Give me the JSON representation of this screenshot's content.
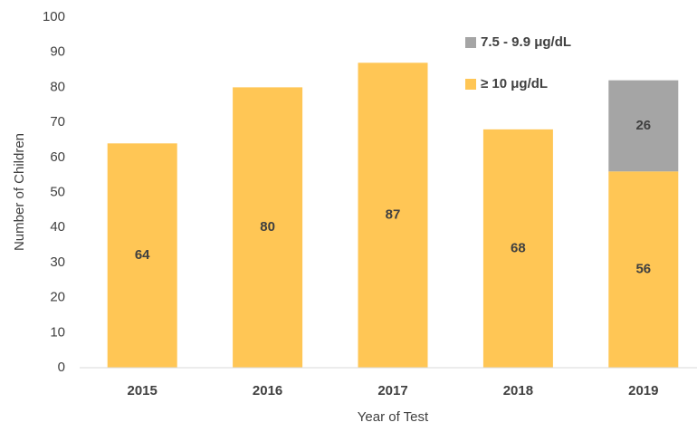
{
  "chart_data": {
    "type": "stacked_bar",
    "x_label": "Year of Test",
    "y_label": "Number of Children",
    "categories": [
      "2015",
      "2016",
      "2017",
      "2018",
      "2019"
    ],
    "series": [
      {
        "name": "≥ 10 μg/dL",
        "color": "#FFC655",
        "values": [
          64,
          80,
          87,
          68,
          56
        ]
      },
      {
        "name": "7.5 - 9.9 μg/dL",
        "color": "#A5A5A5",
        "values": [
          null,
          null,
          null,
          null,
          26
        ]
      }
    ],
    "ylim": [
      0,
      100
    ],
    "yticks": [
      0,
      10,
      20,
      30,
      40,
      50,
      60,
      70,
      80,
      90,
      100
    ],
    "grid": false,
    "legend": "top-right"
  }
}
